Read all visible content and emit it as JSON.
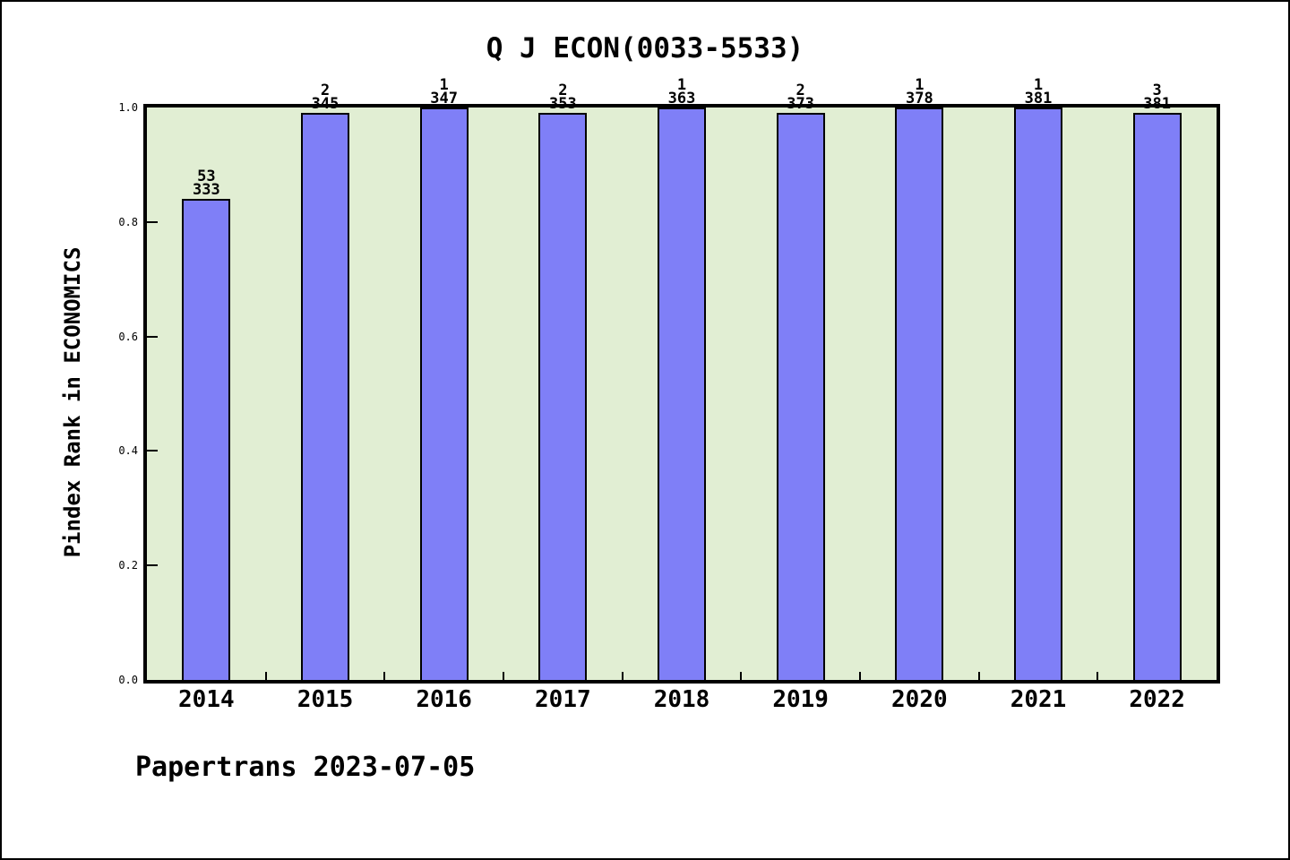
{
  "footer": {
    "text": "Papertrans 2023-07-05"
  },
  "chart_data": {
    "type": "bar",
    "title": "Q J ECON(0033-5533)",
    "ylabel": "Pindex Rank in ECONOMICS",
    "xlabel": "",
    "categories": [
      "2014",
      "2015",
      "2016",
      "2017",
      "2018",
      "2019",
      "2020",
      "2021",
      "2022"
    ],
    "bars": [
      {
        "year": "2014",
        "rank": "53",
        "total": "333",
        "value": 0.84
      },
      {
        "year": "2015",
        "rank": "2",
        "total": "345",
        "value": 0.99
      },
      {
        "year": "2016",
        "rank": "1",
        "total": "347",
        "value": 1.0
      },
      {
        "year": "2017",
        "rank": "2",
        "total": "353",
        "value": 0.99
      },
      {
        "year": "2018",
        "rank": "1",
        "total": "363",
        "value": 1.0
      },
      {
        "year": "2019",
        "rank": "2",
        "total": "373",
        "value": 0.99
      },
      {
        "year": "2020",
        "rank": "1",
        "total": "378",
        "value": 1.0
      },
      {
        "year": "2021",
        "rank": "1",
        "total": "381",
        "value": 1.0
      },
      {
        "year": "2022",
        "rank": "3",
        "total": "381",
        "value": 0.99
      }
    ],
    "yticks": [
      "0.0",
      "0.2",
      "0.4",
      "0.6",
      "0.8",
      "1.0"
    ],
    "ylim": [
      0.0,
      1.0
    ],
    "grid": false,
    "legend": null,
    "colors": {
      "bar_fill": "#7f7ff7",
      "bar_border": "#000000",
      "plot_bg": "#e1eed3",
      "axis": "#000000"
    }
  }
}
